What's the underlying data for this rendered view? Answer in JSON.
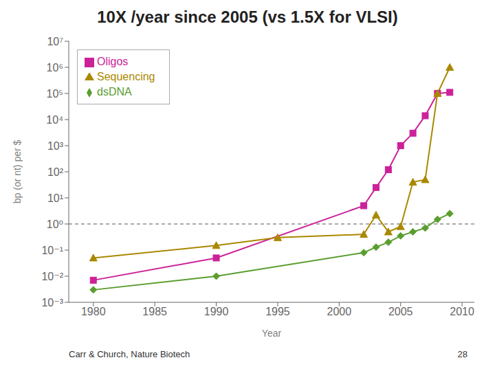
{
  "chart_data": {
    "type": "line",
    "title": "10X /year since 2005 (vs 1.5X for VLSI)",
    "x_label": "Year",
    "y_label": "bp (or nt) per $",
    "log": "y",
    "grid": false,
    "legend": "upper left",
    "xlim": [
      1978,
      2011
    ],
    "xticks": [
      1980,
      1985,
      1990,
      1995,
      2000,
      2005,
      2010
    ],
    "ylim": [
      0.001,
      10000000
    ],
    "yticks": [
      {
        "value": 0.001,
        "label": "10⁻³"
      },
      {
        "value": 0.01,
        "label": "10⁻²"
      },
      {
        "value": 0.1,
        "label": "10⁻¹"
      },
      {
        "value": 1,
        "label": "10⁰"
      },
      {
        "value": 10,
        "label": "10¹"
      },
      {
        "value": 100,
        "label": "10²"
      },
      {
        "value": 1000,
        "label": "10³"
      },
      {
        "value": 10000,
        "label": "10⁴"
      },
      {
        "value": 100000,
        "label": "10⁵"
      },
      {
        "value": 1000000,
        "label": "10⁶"
      },
      {
        "value": 10000000,
        "label": "10⁷"
      }
    ],
    "series": [
      {
        "name": "dsDNA",
        "color": "#5a9e2f",
        "marker": "diamond",
        "x": [
          1980,
          1990,
          2002,
          2003,
          2004,
          2005,
          2006,
          2007,
          2008,
          2009
        ],
        "values": [
          0.003,
          0.01,
          0.08,
          0.13,
          0.2,
          0.35,
          0.5,
          0.7,
          1.5,
          2.5
        ]
      },
      {
        "name": "Oligos",
        "color": "#cc2299",
        "marker": "square",
        "x": [
          1980,
          1990,
          2002,
          2003,
          2004,
          2005,
          2006,
          2007,
          2008,
          2009
        ],
        "values": [
          0.007,
          0.05,
          5.0,
          25.0,
          120.0,
          1000.0,
          3000.0,
          14000.0,
          100000.0,
          110000.0
        ]
      },
      {
        "name": "Sequencing",
        "color": "#aa8800",
        "marker": "triangle",
        "x": [
          1980,
          1990,
          1995,
          2002,
          2003,
          2004,
          2005,
          2006,
          2007,
          2008,
          2009
        ],
        "values": [
          0.05,
          0.15,
          0.3,
          0.4,
          2.2,
          0.5,
          0.8,
          40.0,
          50.0,
          100000.0,
          1000000.0
        ]
      }
    ],
    "reference_lines": [
      {
        "y": 1.0,
        "color": "#555555",
        "line_style": "dashed"
      }
    ],
    "annotations": [
      "Carr & Church, Nature Biotech",
      "28"
    ]
  }
}
